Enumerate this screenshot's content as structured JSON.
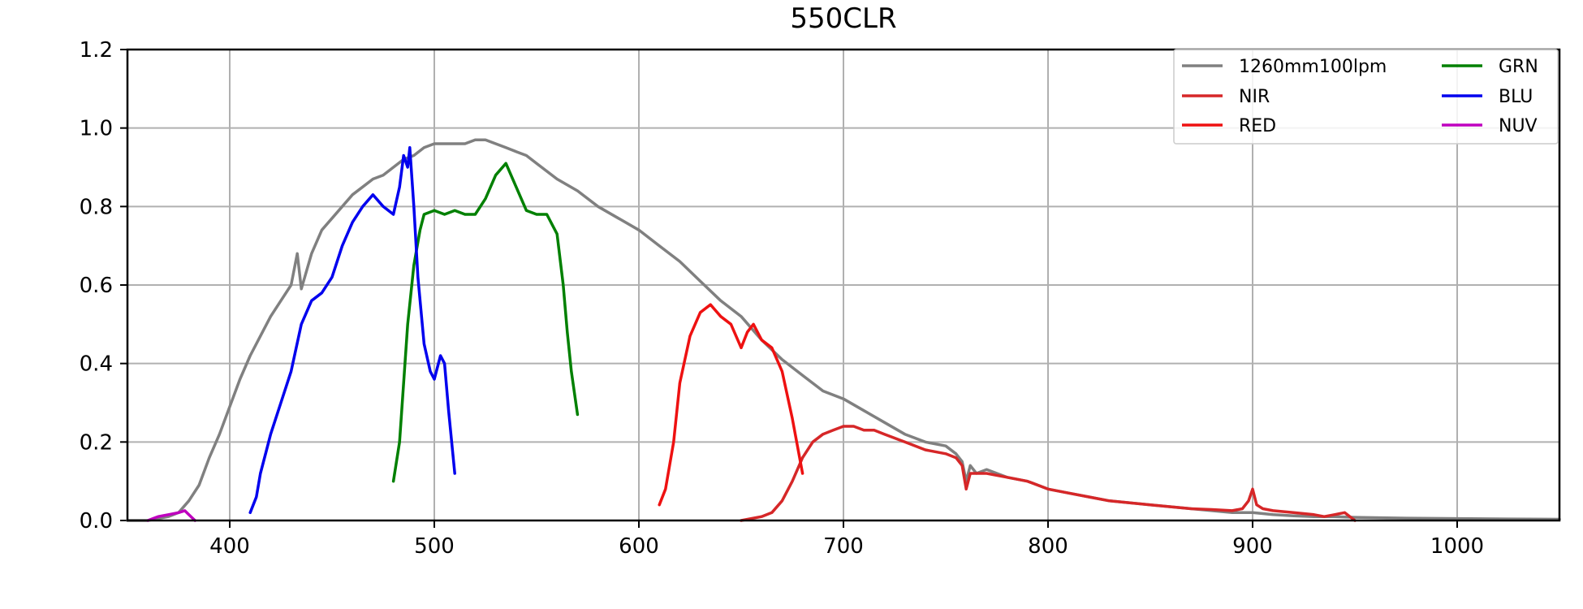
{
  "chart_data": {
    "type": "line",
    "title": "550CLR",
    "xlabel": "",
    "ylabel": "",
    "xlim": [
      350,
      1050
    ],
    "ylim": [
      0,
      1.2
    ],
    "x_ticks": [
      400,
      500,
      600,
      700,
      800,
      900,
      1000
    ],
    "y_ticks": [
      "0.0",
      "0.2",
      "0.4",
      "0.6",
      "0.8",
      "1.0",
      "1.2"
    ],
    "grid": true,
    "legend_position": "top-right",
    "series": [
      {
        "name": "1260mm100lpm",
        "color": "#808080",
        "x": [
          350,
          360,
          370,
          375,
          380,
          385,
          390,
          395,
          400,
          405,
          410,
          415,
          420,
          425,
          430,
          433,
          435,
          440,
          445,
          450,
          455,
          460,
          465,
          470,
          475,
          480,
          485,
          490,
          495,
          500,
          505,
          510,
          515,
          520,
          525,
          530,
          535,
          540,
          545,
          550,
          560,
          570,
          580,
          590,
          600,
          610,
          620,
          630,
          640,
          650,
          660,
          670,
          680,
          690,
          700,
          710,
          720,
          730,
          740,
          750,
          755,
          758,
          760,
          762,
          765,
          770,
          780,
          790,
          800,
          810,
          820,
          830,
          840,
          850,
          860,
          870,
          880,
          890,
          900,
          910,
          920,
          930,
          940,
          950,
          975,
          1000,
          1025,
          1050
        ],
        "y": [
          0.0,
          0.0,
          0.01,
          0.02,
          0.05,
          0.09,
          0.16,
          0.22,
          0.29,
          0.36,
          0.42,
          0.47,
          0.52,
          0.56,
          0.6,
          0.68,
          0.59,
          0.68,
          0.74,
          0.77,
          0.8,
          0.83,
          0.85,
          0.87,
          0.88,
          0.9,
          0.92,
          0.93,
          0.95,
          0.96,
          0.96,
          0.96,
          0.96,
          0.97,
          0.97,
          0.96,
          0.95,
          0.94,
          0.93,
          0.91,
          0.87,
          0.84,
          0.8,
          0.77,
          0.74,
          0.7,
          0.66,
          0.61,
          0.56,
          0.52,
          0.46,
          0.41,
          0.37,
          0.33,
          0.31,
          0.28,
          0.25,
          0.22,
          0.2,
          0.19,
          0.17,
          0.15,
          0.1,
          0.14,
          0.12,
          0.13,
          0.11,
          0.1,
          0.08,
          0.07,
          0.06,
          0.05,
          0.045,
          0.04,
          0.035,
          0.03,
          0.025,
          0.02,
          0.02,
          0.015,
          0.012,
          0.01,
          0.01,
          0.008,
          0.006,
          0.005,
          0.004,
          0.003
        ]
      },
      {
        "name": "NIR",
        "color": "#d62728",
        "x": [
          650,
          660,
          665,
          670,
          675,
          680,
          685,
          690,
          695,
          700,
          705,
          710,
          715,
          720,
          730,
          740,
          750,
          755,
          758,
          760,
          762,
          765,
          770,
          780,
          790,
          800,
          810,
          820,
          830,
          840,
          850,
          860,
          870,
          880,
          890,
          895,
          898,
          900,
          902,
          905,
          910,
          920,
          930,
          935,
          940,
          945,
          950
        ],
        "y": [
          0.0,
          0.01,
          0.02,
          0.05,
          0.1,
          0.16,
          0.2,
          0.22,
          0.23,
          0.24,
          0.24,
          0.23,
          0.23,
          0.22,
          0.2,
          0.18,
          0.17,
          0.16,
          0.14,
          0.08,
          0.12,
          0.12,
          0.12,
          0.11,
          0.1,
          0.08,
          0.07,
          0.06,
          0.05,
          0.045,
          0.04,
          0.035,
          0.03,
          0.028,
          0.025,
          0.03,
          0.05,
          0.08,
          0.04,
          0.03,
          0.025,
          0.02,
          0.015,
          0.01,
          0.015,
          0.02,
          0.0
        ]
      },
      {
        "name": "RED",
        "color": "#ee1111",
        "x": [
          610,
          613,
          617,
          620,
          625,
          630,
          635,
          640,
          645,
          650,
          653,
          656,
          660,
          665,
          670,
          675,
          680
        ],
        "y": [
          0.04,
          0.08,
          0.2,
          0.35,
          0.47,
          0.53,
          0.55,
          0.52,
          0.5,
          0.44,
          0.48,
          0.5,
          0.46,
          0.44,
          0.38,
          0.26,
          0.12
        ]
      },
      {
        "name": "GRN",
        "color": "#008000",
        "x": [
          480,
          483,
          485,
          487,
          490,
          493,
          495,
          500,
          505,
          510,
          515,
          520,
          525,
          530,
          535,
          540,
          545,
          550,
          555,
          560,
          563,
          565,
          567,
          570
        ],
        "y": [
          0.1,
          0.2,
          0.35,
          0.5,
          0.65,
          0.74,
          0.78,
          0.79,
          0.78,
          0.79,
          0.78,
          0.78,
          0.82,
          0.88,
          0.91,
          0.85,
          0.79,
          0.78,
          0.78,
          0.73,
          0.6,
          0.48,
          0.38,
          0.27
        ]
      },
      {
        "name": "BLU",
        "color": "#0000ee",
        "x": [
          410,
          413,
          415,
          418,
          420,
          425,
          430,
          435,
          440,
          445,
          450,
          455,
          460,
          465,
          470,
          475,
          480,
          483,
          485,
          487,
          488,
          490,
          492,
          495,
          498,
          500,
          503,
          505,
          507,
          510
        ],
        "y": [
          0.02,
          0.06,
          0.12,
          0.18,
          0.22,
          0.3,
          0.38,
          0.5,
          0.56,
          0.58,
          0.62,
          0.7,
          0.76,
          0.8,
          0.83,
          0.8,
          0.78,
          0.85,
          0.93,
          0.9,
          0.95,
          0.8,
          0.62,
          0.45,
          0.38,
          0.36,
          0.42,
          0.4,
          0.28,
          0.12
        ]
      },
      {
        "name": "NUV",
        "color": "#bf00bf",
        "x": [
          360,
          365,
          370,
          375,
          378,
          380,
          383
        ],
        "y": [
          0.0,
          0.01,
          0.015,
          0.02,
          0.025,
          0.015,
          0.0
        ]
      }
    ],
    "legend_layout": [
      [
        "1260mm100lpm",
        "GRN"
      ],
      [
        "NIR",
        "BLU"
      ],
      [
        "RED",
        "NUV"
      ]
    ]
  }
}
